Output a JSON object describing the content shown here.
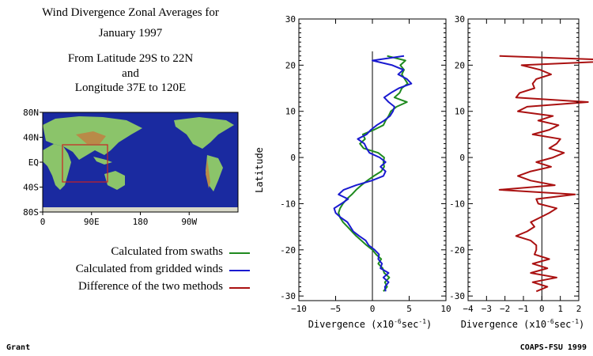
{
  "header": {
    "title_line1": "Wind Divergence Zonal Averages for",
    "title_line2": "January 1997",
    "range_line1": "From Latitude 29S to 22N",
    "range_line2": "and",
    "range_line3": "Longitude 37E to 120E"
  },
  "map": {
    "y_ticks": [
      "80N",
      "40N",
      "EQ",
      "40S",
      "80S"
    ],
    "x_ticks": [
      "0",
      "90E",
      "180",
      "90W"
    ],
    "colors": {
      "ocean": "#1a2aa0",
      "land": "#8bc46a",
      "mountain": "#b98a48",
      "box": "#cc2222"
    }
  },
  "legend": [
    {
      "label": "Calculated from swaths",
      "color": "#1f8a1f"
    },
    {
      "label": "Calculated from gridded winds",
      "color": "#1a1ad0"
    },
    {
      "label": "Difference of the two methods",
      "color": "#aa1111"
    }
  ],
  "footer": {
    "left": "Grant",
    "right": "COAPS-FSU 1999"
  },
  "chart_data": [
    {
      "type": "line",
      "ylabel": "Latitude",
      "xlabel_text": "Divergence (x10",
      "xlabel_exp1": "-6",
      "xlabel_unit": "sec",
      "xlabel_exp2": "-1",
      "xlabel_close": ")",
      "xlim": [
        -10,
        10
      ],
      "ylim": [
        -31,
        30
      ],
      "x_ticks": [
        -10,
        -5,
        0,
        5,
        10
      ],
      "y_ticks": [
        -30,
        -20,
        -10,
        0,
        10,
        20,
        30
      ],
      "y": [
        -29,
        -28,
        -27,
        -26,
        -25,
        -24,
        -23,
        -22,
        -21,
        -20,
        -19,
        -18,
        -17,
        -16,
        -15,
        -14,
        -13,
        -12,
        -11,
        -10,
        -9,
        -8,
        -7,
        -6,
        -5,
        -4,
        -3,
        -2,
        -1,
        0,
        1,
        2,
        3,
        4,
        5,
        6,
        7,
        8,
        9,
        10,
        11,
        12,
        13,
        14,
        15,
        16,
        17,
        18,
        19,
        20,
        21,
        22
      ],
      "series": [
        {
          "name": "Calculated from swaths",
          "color": "#1f8a1f",
          "values": [
            1.5,
            2.0,
            1.7,
            2.3,
            1.6,
            1.4,
            0.8,
            1.2,
            0.5,
            0.0,
            -0.8,
            -1.5,
            -2.2,
            -2.8,
            -3.4,
            -4.0,
            -4.4,
            -4.6,
            -4.4,
            -4.0,
            -3.5,
            -2.8,
            -2.2,
            -1.5,
            -0.7,
            0.2,
            1.2,
            1.6,
            1.5,
            1.6,
            0.8,
            -1.2,
            -1.7,
            -1.0,
            -1.3,
            0.2,
            1.5,
            1.8,
            2.2,
            2.5,
            3.3,
            4.7,
            3.0,
            3.7,
            4.0,
            4.8,
            4.4,
            4.0,
            4.3,
            3.8,
            4.5,
            2.0
          ]
        },
        {
          "name": "Calculated from gridded winds",
          "color": "#1a1ad0",
          "values": [
            1.8,
            1.7,
            2.2,
            1.5,
            2.2,
            1.1,
            1.3,
            0.8,
            0.9,
            0.3,
            -0.5,
            -0.9,
            -1.8,
            -2.6,
            -3.0,
            -3.4,
            -4.3,
            -5.0,
            -5.2,
            -4.2,
            -3.3,
            -4.6,
            -3.9,
            -2.2,
            -0.1,
            1.5,
            1.8,
            1.1,
            1.8,
            1.0,
            -0.4,
            -0.8,
            -1.1,
            -2.0,
            -0.8,
            -0.2,
            0.6,
            1.6,
            2.4,
            2.8,
            3.0,
            2.2,
            1.6,
            2.5,
            3.6,
            5.3,
            4.7,
            3.5,
            4.2,
            2.7,
            0.0,
            4.3
          ]
        }
      ]
    },
    {
      "type": "line",
      "xlabel_text": "Divergence (x10",
      "xlabel_exp1": "-6",
      "xlabel_unit": "sec",
      "xlabel_exp2": "-1",
      "xlabel_close": ")",
      "xlim": [
        -4,
        2
      ],
      "ylim": [
        -31,
        30
      ],
      "x_ticks": [
        -4,
        -3,
        -2,
        -1,
        0,
        1,
        2
      ],
      "y_ticks": [
        -30,
        -20,
        -10,
        0,
        10,
        20,
        30
      ],
      "y": [
        -29,
        -28,
        -27,
        -26,
        -25,
        -24,
        -23,
        -22,
        -21,
        -20,
        -19,
        -18,
        -17,
        -16,
        -15,
        -14,
        -13,
        -12,
        -11,
        -10,
        -9,
        -8,
        -7,
        -6,
        -5,
        -4,
        -3,
        -2,
        -1,
        0,
        1,
        2,
        3,
        4,
        5,
        6,
        7,
        8,
        9,
        10,
        11,
        12,
        13,
        14,
        15,
        16,
        17,
        18,
        19,
        20,
        21,
        22
      ],
      "series": [
        {
          "name": "Difference of the two methods",
          "color": "#aa1111",
          "values": [
            -0.3,
            0.3,
            -0.5,
            0.8,
            -0.6,
            0.3,
            -0.5,
            0.4,
            -0.4,
            -0.3,
            -0.3,
            -0.6,
            -1.4,
            -0.8,
            -0.4,
            -0.6,
            -0.1,
            0.4,
            0.8,
            -0.2,
            -0.3,
            1.8,
            -2.3,
            0.7,
            -0.6,
            -1.3,
            -0.6,
            0.5,
            -0.3,
            0.6,
            1.2,
            0.4,
            0.8,
            1.0,
            -0.5,
            0.4,
            0.9,
            -0.2,
            0.6,
            -1.3,
            -0.8,
            2.5,
            -1.4,
            -1.2,
            -0.4,
            -0.5,
            -0.3,
            0.5,
            -0.1,
            -1.1,
            4.5,
            -2.3
          ]
        }
      ]
    }
  ]
}
